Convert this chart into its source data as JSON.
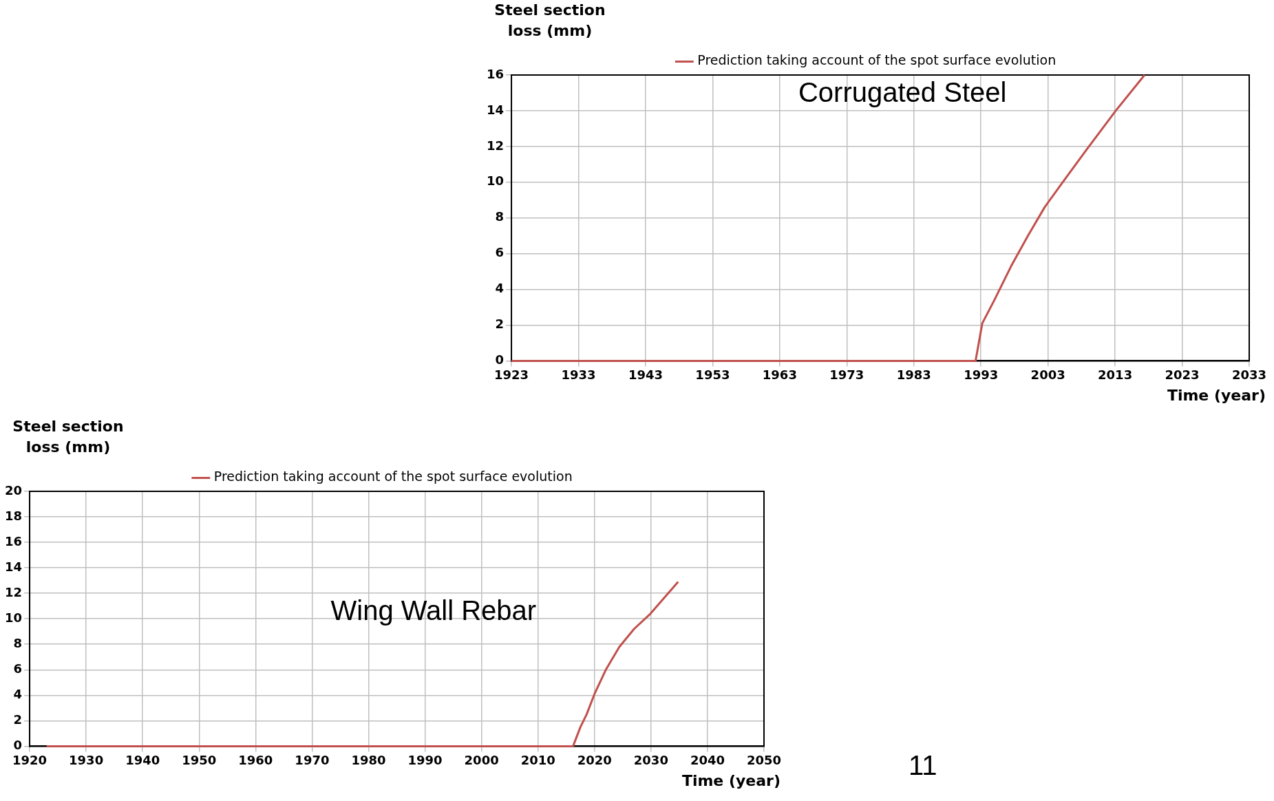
{
  "chart_data": [
    {
      "type": "line",
      "title": "Corrugated Steel",
      "ylabel": "Steel section loss (mm)",
      "xlabel": "Time (year)",
      "legend": "top",
      "grid": true,
      "xlim": [
        1923,
        2033
      ],
      "xticks": [
        1923,
        1933,
        1943,
        1953,
        1963,
        1973,
        1983,
        1993,
        2003,
        2013,
        2023,
        2033
      ],
      "ylim": [
        0,
        16
      ],
      "yticks": [
        0,
        2,
        4,
        6,
        8,
        10,
        12,
        14,
        16
      ],
      "series": [
        {
          "name": "Prediction taking account of the spot surface evolution",
          "color": "#c0504d",
          "x": [
            1923,
            1992.2,
            1993.2,
            1995,
            1997.5,
            2000,
            2002.5,
            2005,
            2008.7,
            2013.1,
            2017.4
          ],
          "values": [
            0,
            0,
            2.1,
            3.4,
            5.3,
            7.0,
            8.6,
            9.9,
            11.8,
            14.0,
            16.0
          ]
        }
      ]
    },
    {
      "type": "line",
      "title": "Wing Wall Rebar",
      "ylabel": "Steel section loss (mm)",
      "xlabel": "Time (year)",
      "legend": "top",
      "grid": true,
      "xlim": [
        1920,
        2050
      ],
      "xticks": [
        1920,
        1930,
        1940,
        1950,
        1960,
        1970,
        1980,
        1990,
        2000,
        2010,
        2020,
        2030,
        2040,
        2050
      ],
      "ylim": [
        0,
        20
      ],
      "yticks": [
        0,
        2,
        4,
        6,
        8,
        10,
        12,
        14,
        16,
        18,
        20
      ],
      "annotations": [
        "11"
      ],
      "series": [
        {
          "name": "Prediction taking account of the spot surface evolution",
          "color": "#c0504d",
          "x": [
            1923,
            2016.2,
            2017.5,
            2018.6,
            2020,
            2022,
            2024.4,
            2027,
            2029.9,
            2034.8
          ],
          "values": [
            0,
            0,
            1.5,
            2.5,
            4.1,
            6.0,
            7.8,
            9.2,
            10.4,
            12.9
          ]
        }
      ]
    }
  ]
}
